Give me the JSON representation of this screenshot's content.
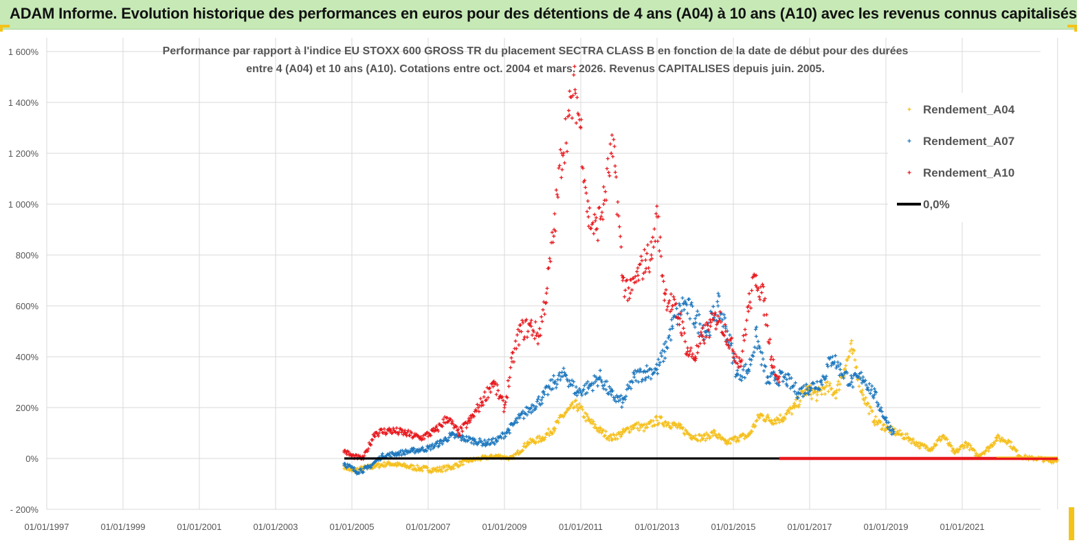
{
  "header": {
    "title": "ADAM Informe. Evolution historique des performances en euros pour des détentions de 4 ans (A04) à 10 ans (A10) avec les revenus connus capitalisés",
    "background": "#c6e9b6",
    "corner_color": "#f3c319"
  },
  "chart_data": {
    "type": "scatter",
    "title_lines": [
      "Performance par rapport à l'indice EU STOXX 600 GROSS TR  du placement SECTRA CLASS B en fonction de la date de début pour des durées",
      "entre 4 (A04) et 10 ans (A10). Cotations entre oct. 2004 et mars. 2026. Revenus CAPITALISES depuis juin. 2005."
    ],
    "xlabel": "",
    "ylabel": "",
    "x_range": [
      1997.0,
      2023.5
    ],
    "ylim": [
      -200,
      1600
    ],
    "y_ticks": [
      -200,
      0,
      200,
      400,
      600,
      800,
      1000,
      1200,
      1400,
      1600
    ],
    "y_tick_labels": [
      "- 200%",
      "0%",
      "200%",
      "400%",
      "600%",
      "800%",
      "1 000%",
      "1 200%",
      "1 400%",
      "1 600%"
    ],
    "x_tick_labels": [
      "01/01/1997",
      "01/01/1999",
      "01/01/2001",
      "01/01/2003",
      "01/01/2005",
      "01/01/2007",
      "01/01/2009",
      "01/01/2011",
      "01/01/2013",
      "01/01/2015",
      "01/01/2017",
      "01/01/2019",
      "01/01/2021"
    ],
    "x_tick_years": [
      1997,
      1999,
      2001,
      2003,
      2005,
      2007,
      2009,
      2011,
      2013,
      2015,
      2017,
      2019,
      2021
    ],
    "grid": true,
    "legend_position": "top-right",
    "marker": "+",
    "series": [
      {
        "name": "Rendement_A04",
        "color": "#f5c01e",
        "x": [
          2004.8,
          2005.0,
          2005.3,
          2005.6,
          2006.0,
          2006.4,
          2006.8,
          2007.2,
          2007.6,
          2008.0,
          2008.4,
          2008.8,
          2009.2,
          2009.6,
          2010.0,
          2010.3,
          2010.6,
          2010.9,
          2011.2,
          2011.5,
          2011.8,
          2012.1,
          2012.4,
          2012.7,
          2013.0,
          2013.3,
          2013.6,
          2013.9,
          2014.2,
          2014.5,
          2014.8,
          2015.1,
          2015.4,
          2015.7,
          2016.0,
          2016.3,
          2016.6,
          2016.9,
          2017.2,
          2017.4,
          2017.7,
          2017.9,
          2018.1,
          2018.4,
          2018.7,
          2019.0,
          2019.3,
          2019.6,
          2019.9,
          2020.2,
          2020.5,
          2020.8,
          2021.1,
          2021.4,
          2021.7,
          2021.9,
          2022.2,
          2022.5,
          2022.8,
          2023.0,
          2023.3,
          2023.5
        ],
        "values": [
          -30,
          -50,
          -40,
          -30,
          -20,
          -30,
          -40,
          -45,
          -35,
          -10,
          0,
          10,
          0,
          60,
          80,
          120,
          180,
          210,
          150,
          110,
          80,
          100,
          130,
          120,
          150,
          140,
          120,
          90,
          80,
          100,
          60,
          80,
          90,
          170,
          150,
          160,
          200,
          270,
          250,
          280,
          260,
          350,
          430,
          250,
          150,
          120,
          100,
          80,
          50,
          40,
          90,
          20,
          60,
          10,
          40,
          80,
          70,
          10,
          0,
          0,
          -10,
          -5
        ]
      },
      {
        "name": "Rendement_A07",
        "color": "#1e78be",
        "x": [
          2004.8,
          2005.1,
          2005.4,
          2005.8,
          2006.2,
          2006.6,
          2007.0,
          2007.3,
          2007.6,
          2007.9,
          2008.2,
          2008.5,
          2008.8,
          2009.1,
          2009.4,
          2009.7,
          2010.0,
          2010.3,
          2010.6,
          2010.9,
          2011.2,
          2011.5,
          2011.8,
          2012.1,
          2012.4,
          2012.7,
          2013.0,
          2013.2,
          2013.4,
          2013.7,
          2014.0,
          2014.3,
          2014.6,
          2014.8,
          2015.1,
          2015.4,
          2015.6,
          2015.9,
          2016.1,
          2016.4,
          2016.7,
          2017.0,
          2017.3,
          2017.6,
          2017.8,
          2018.1,
          2018.4,
          2018.7,
          2019.0,
          2019.2
        ],
        "values": [
          -20,
          -50,
          -40,
          10,
          20,
          30,
          40,
          60,
          90,
          80,
          70,
          60,
          70,
          110,
          160,
          200,
          240,
          300,
          330,
          260,
          280,
          320,
          250,
          220,
          320,
          340,
          350,
          420,
          520,
          610,
          550,
          500,
          600,
          520,
          330,
          350,
          480,
          300,
          320,
          310,
          260,
          280,
          300,
          400,
          350,
          300,
          320,
          250,
          150,
          100
        ]
      },
      {
        "name": "Rendement_A10",
        "color": "#e8191e",
        "x": [
          2004.8,
          2005.0,
          2005.3,
          2005.6,
          2006.0,
          2006.4,
          2006.8,
          2007.2,
          2007.5,
          2007.8,
          2008.1,
          2008.4,
          2008.7,
          2009.0,
          2009.2,
          2009.4,
          2009.7,
          2009.9,
          2010.1,
          2010.3,
          2010.5,
          2010.7,
          2010.85,
          2011.0,
          2011.2,
          2011.4,
          2011.6,
          2011.8,
          2011.9,
          2012.1,
          2012.3,
          2012.5,
          2012.7,
          2012.85,
          2013.0,
          2013.2,
          2013.4,
          2013.6,
          2013.8,
          2014.0,
          2014.2,
          2014.4,
          2014.6,
          2014.8,
          2015.0,
          2015.2,
          2015.4,
          2015.6,
          2015.8,
          2016.0,
          2016.2
        ],
        "values": [
          30,
          10,
          0,
          100,
          110,
          100,
          80,
          110,
          160,
          100,
          150,
          220,
          300,
          200,
          380,
          500,
          520,
          480,
          650,
          900,
          1200,
          1350,
          1450,
          1300,
          950,
          900,
          1000,
          1200,
          1150,
          700,
          650,
          720,
          780,
          800,
          950,
          650,
          600,
          550,
          420,
          400,
          480,
          520,
          560,
          500,
          420,
          380,
          600,
          720,
          620,
          400,
          300
        ]
      },
      {
        "name": "0,0%",
        "color": "#000000",
        "type": "line",
        "x": [
          2004.8,
          2023.5
        ],
        "values": [
          0,
          0
        ]
      }
    ]
  }
}
